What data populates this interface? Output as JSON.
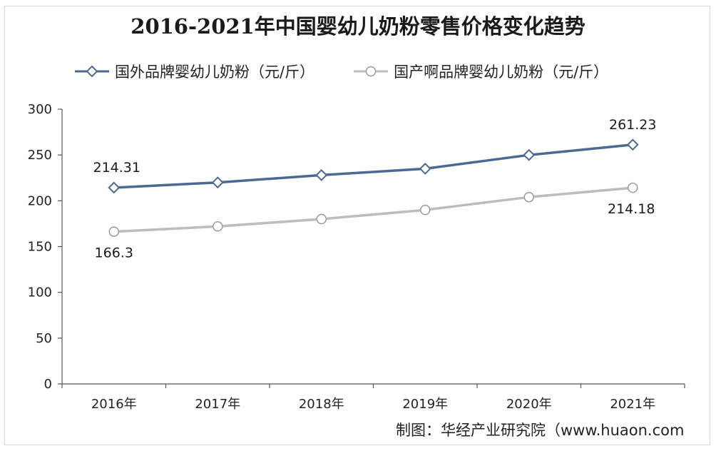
{
  "chart_data": {
    "type": "line",
    "title": "2016-2021年中国婴幼儿奶粉零售价格变化趋势",
    "categories": [
      "2016年",
      "2017年",
      "2018年",
      "2019年",
      "2020年",
      "2021年"
    ],
    "series": [
      {
        "name": "国外品牌婴幼儿奶粉（元/斤）",
        "values": [
          214.31,
          220,
          228,
          235,
          250,
          261.23
        ],
        "color": "#4a6a93",
        "marker": "diamond",
        "labels": {
          "0": "214.31",
          "5": "261.23"
        }
      },
      {
        "name": "国产啊品牌婴幼儿奶粉（元/斤）",
        "values": [
          166.3,
          172,
          180,
          190,
          204,
          214.18
        ],
        "color": "#bdbdbd",
        "marker": "circle",
        "labels": {
          "0": "166.3",
          "5": "214.18"
        }
      }
    ],
    "ylim": [
      0,
      300
    ],
    "yticks": [
      "0",
      "50",
      "100",
      "150",
      "200",
      "250",
      "300"
    ],
    "grid": false,
    "legend_position": "top-left"
  },
  "source": "制图：华经产业研究院（www.huaon.com"
}
